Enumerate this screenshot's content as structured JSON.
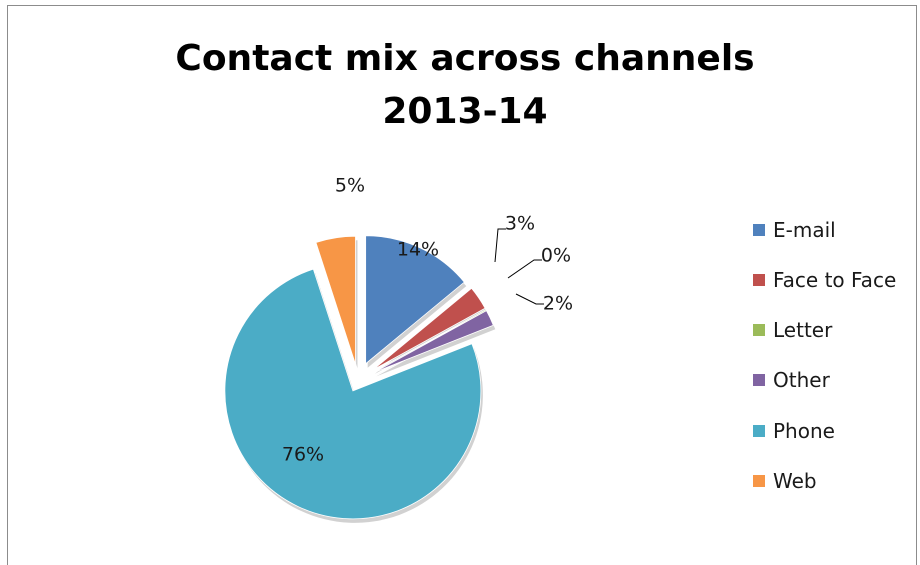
{
  "chart_data": {
    "type": "pie",
    "title": "Contact mix across channels 2013-14",
    "title_lines": [
      "Contact mix across channels",
      "2013-14"
    ],
    "categories": [
      "E-mail",
      "Face to Face",
      "Letter",
      "Other",
      "Phone",
      "Web"
    ],
    "values": [
      14,
      3,
      0,
      2,
      76,
      5
    ],
    "labels": [
      "14%",
      "3%",
      "0%",
      "2%",
      "76%",
      "5%"
    ],
    "colors": [
      "#4f81bd",
      "#c0504d",
      "#9bbb59",
      "#8064a2",
      "#4bacc6",
      "#f79646"
    ],
    "exploded": true,
    "legend_position": "right"
  }
}
